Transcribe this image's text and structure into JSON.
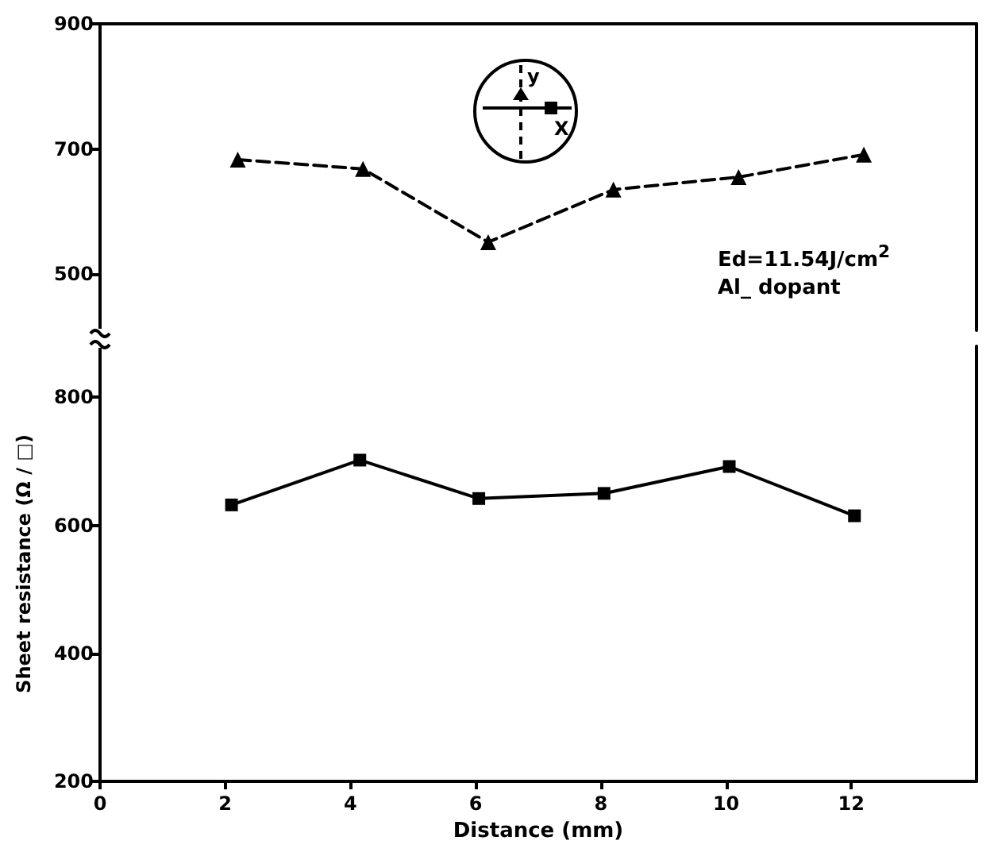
{
  "chart_data": [
    {
      "type": "line",
      "x": [
        2.2,
        4.2,
        6.2,
        8.2,
        10.2,
        12.2
      ],
      "xlim": [
        0,
        14
      ],
      "xticks": [
        0,
        2,
        4,
        6,
        8,
        10,
        12
      ],
      "ylim": [
        410,
        900
      ],
      "yticks": [
        500,
        700,
        900
      ],
      "tick_labels": "y",
      "grid": false,
      "series": [
        {
          "name": "y",
          "color": "#000000",
          "marker": "triangle",
          "line_style": "dashed",
          "values": [
            683,
            668,
            551,
            635,
            655,
            691
          ]
        }
      ],
      "annotations": [
        "Ed=11.54J/cm$^{2}$",
        "Al_ dopant"
      ]
    },
    {
      "type": "line",
      "x": [
        2.1,
        4.15,
        6.05,
        8.05,
        10.05,
        12.05
      ],
      "xlim": [
        0,
        14
      ],
      "xticks": [
        0,
        2,
        4,
        6,
        8,
        10,
        12
      ],
      "ylim": [
        200,
        880
      ],
      "yticks": [
        200,
        400,
        600,
        800
      ],
      "grid": false,
      "xlabel": "Distance (mm)",
      "ylabel": "Sheet resistance (Ω / □)",
      "series": [
        {
          "name": "X",
          "color": "#000000",
          "marker": "square",
          "line_style": "solid",
          "values": [
            632,
            702,
            642,
            650,
            692,
            615
          ]
        }
      ]
    }
  ]
}
